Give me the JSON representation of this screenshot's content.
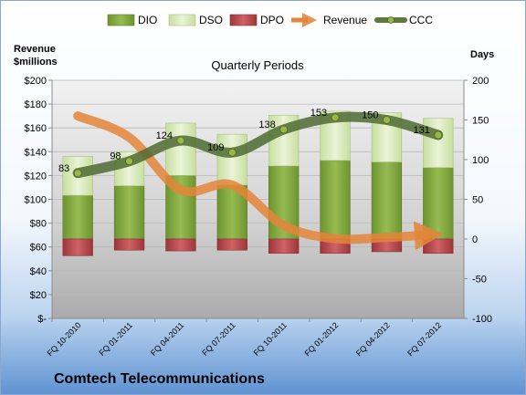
{
  "chart_data": {
    "type": "bar",
    "title": "Quarterly Periods",
    "company": "Comtech Telecommunications",
    "left_axis_title": [
      "Revenue",
      "$millions"
    ],
    "right_axis_title": "Days",
    "categories": [
      "FQ 10-2010",
      "FQ 01-2011",
      "FQ 04-2011",
      "FQ 07-2011",
      "FQ 10-2011",
      "FQ 01-2012",
      "FQ 04-2012",
      "FQ 07-2012"
    ],
    "left_axis": {
      "ylim": [
        0,
        200
      ],
      "ticks": [
        "$-",
        "$20",
        "$40",
        "$60",
        "$80",
        "$100",
        "$120",
        "$140",
        "$160",
        "$180",
        "$200"
      ]
    },
    "right_axis": {
      "ylim": [
        -100,
        200
      ],
      "ticks": [
        "-100",
        "-50",
        "0",
        "50",
        "100",
        "150",
        "200"
      ]
    },
    "series": [
      {
        "name": "DIO",
        "axis": "right",
        "values": [
          55,
          67,
          80,
          68,
          92,
          99,
          97,
          90
        ]
      },
      {
        "name": "DSO",
        "axis": "right",
        "values": [
          49,
          43,
          66,
          64,
          64,
          62,
          62,
          62
        ]
      },
      {
        "name": "DPO",
        "axis": "right",
        "values": [
          -21,
          -14,
          -15,
          -14,
          -18,
          -18,
          -16,
          -18
        ]
      },
      {
        "name": "Revenue",
        "axis": "left",
        "values": [
          170,
          152,
          108,
          112,
          78,
          67,
          68,
          70
        ]
      },
      {
        "name": "CCC",
        "axis": "right",
        "values": [
          83,
          98,
          124,
          109,
          138,
          153,
          150,
          131
        ],
        "labels": [
          "83",
          "98",
          "124",
          "109",
          "138",
          "153",
          "150",
          "131"
        ]
      }
    ],
    "legend_position": "top",
    "colors": {
      "DIO": "#7ea43a",
      "DSO": "#d6e8b4",
      "DPO": "#b8464b",
      "Revenue": "#e4853a",
      "CCC": "#5d7a3e"
    }
  }
}
